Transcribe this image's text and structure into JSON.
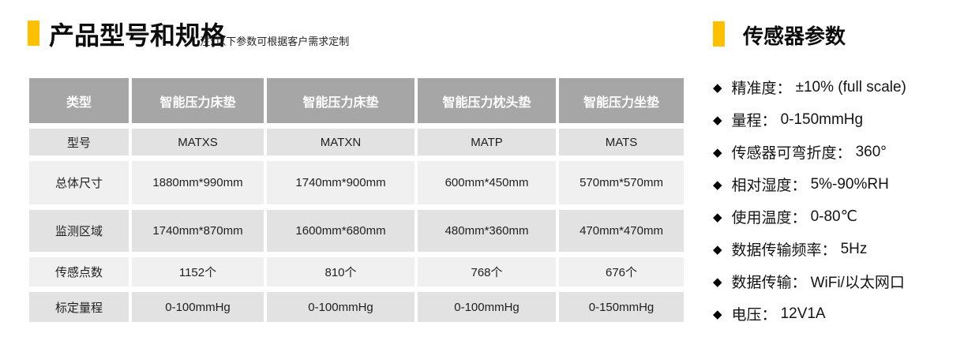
{
  "product_section": {
    "title": "产品型号和规格",
    "note": "注: 以下参数可根据客户需求定制",
    "table": {
      "headers": [
        "类型",
        "智能压力床垫",
        "智能压力床垫",
        "智能压力枕头垫",
        "智能压力坐垫"
      ],
      "rows": [
        {
          "label": "型号",
          "values": [
            "MATXS",
            "MATXN",
            "MATP",
            "MATS"
          ]
        },
        {
          "label": "总体尺寸",
          "values": [
            "1880mm*990mm",
            "1740mm*900mm",
            "600mm*450mm",
            "570mm*570mm"
          ]
        },
        {
          "label": "监测区域",
          "values": [
            "1740mm*870mm",
            "1600mm*680mm",
            "480mm*360mm",
            "470mm*470mm"
          ]
        },
        {
          "label": "传感点数",
          "values": [
            "1152个",
            "810个",
            "768个",
            "676个"
          ]
        },
        {
          "label": "标定量程",
          "values": [
            "0-100mmHg",
            "0-100mmHg",
            "0-100mmHg",
            "0-150mmHg"
          ]
        }
      ]
    }
  },
  "sensor_section": {
    "title": "传感器参数",
    "bullet_icon": "◆",
    "items": [
      {
        "label": "精准度：",
        "value": "±10% (full scale)"
      },
      {
        "label": "量程：",
        "value": "0-150mmHg"
      },
      {
        "label": "传感器可弯折度：",
        "value": "360°"
      },
      {
        "label": "相对湿度：",
        "value": "5%-90%RH"
      },
      {
        "label": "使用温度：",
        "value": "0-80℃"
      },
      {
        "label": "数据传输频率：",
        "value": "5Hz"
      },
      {
        "label": "数据传输：",
        "value": "WiFi/以太网口"
      },
      {
        "label": "电压：",
        "value": "12V1A"
      }
    ]
  },
  "colors": {
    "accent": "#FFC000",
    "table_header_bg": "#A6A6A6",
    "table_header_text": "#FFFFFF",
    "row_band_dark": "#E2E2E2",
    "row_band_light": "#F0F0F0",
    "text": "#1A1A1A"
  }
}
